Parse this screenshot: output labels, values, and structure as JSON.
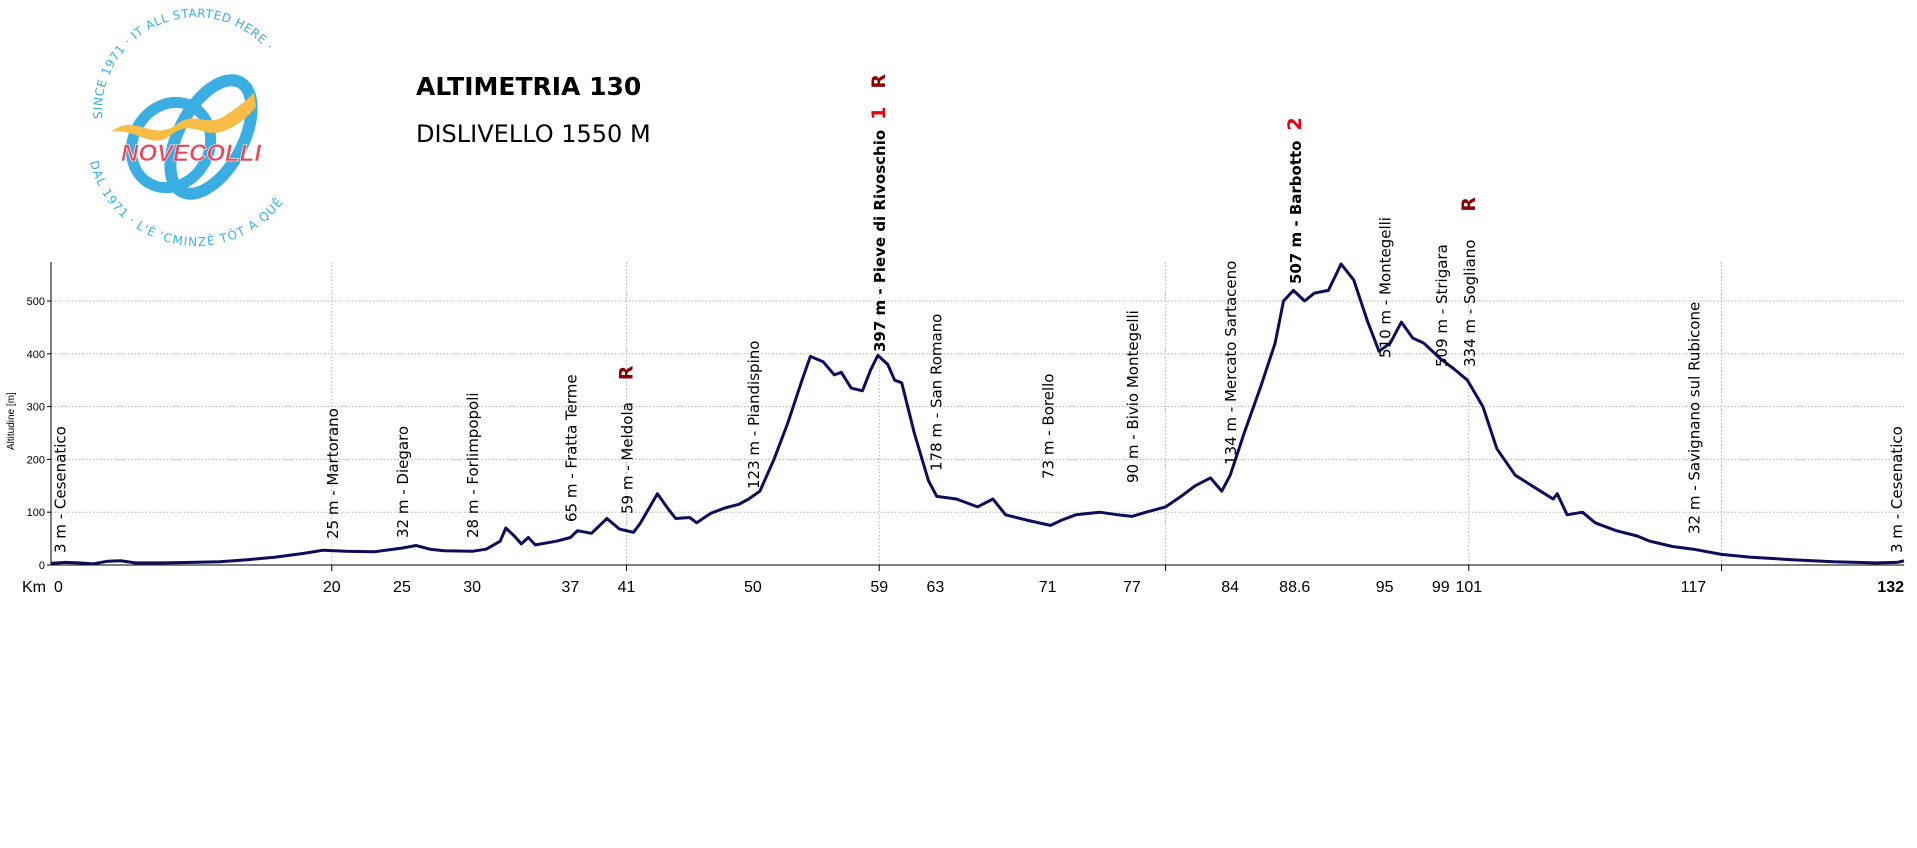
{
  "header": {
    "title": "ALTIMETRIA 130",
    "subtitle": "DISLIVELLO 1550 M"
  },
  "logo": {
    "name": "NOVECOLLI",
    "ring_text_top": "SINCE 1971 · IT ALL STARTED HERE ·",
    "ring_text_bottom": "DAL 1971 · L'È 'CMINZÊ TÖT A QUÊ"
  },
  "colors": {
    "profile": "#0d0d5c",
    "climb_number": "#e3000f",
    "refreshment": "#8b0000",
    "logo_blue": "#3aaee3",
    "logo_yellow": "#f7bd45",
    "logo_red": "#e8465a"
  },
  "chart_data": {
    "type": "line",
    "title": "ALTIMETRIA 130",
    "xlabel": "Km",
    "ylabel": "Altitudine [m]",
    "xlim": [
      0,
      132
    ],
    "ylim": [
      0,
      570
    ],
    "grid": true,
    "yticks": [
      "0",
      "100",
      "200",
      "300",
      "400",
      "500"
    ],
    "xticks": [
      {
        "km": 0,
        "label": "0"
      },
      {
        "km": 20,
        "label": "20"
      },
      {
        "km": 25,
        "label": "25"
      },
      {
        "km": 30,
        "label": "30"
      },
      {
        "km": 37,
        "label": "37"
      },
      {
        "km": 41,
        "label": "41"
      },
      {
        "km": 50,
        "label": "50"
      },
      {
        "km": 59,
        "label": "59"
      },
      {
        "km": 63,
        "label": "63"
      },
      {
        "km": 71,
        "label": "71"
      },
      {
        "km": 77,
        "label": "77"
      },
      {
        "km": 84,
        "label": "84"
      },
      {
        "km": 88.6,
        "label": "88.6"
      },
      {
        "km": 95,
        "label": "95"
      },
      {
        "km": 99,
        "label": "99"
      },
      {
        "km": 101,
        "label": "101"
      },
      {
        "km": 117,
        "label": "117"
      },
      {
        "km": 132,
        "label": "132"
      }
    ],
    "vertical_markers_km": [
      20,
      41,
      59,
      79.4,
      101,
      119
    ],
    "profile": [
      [
        0,
        3
      ],
      [
        1,
        5
      ],
      [
        2,
        4
      ],
      [
        3,
        2
      ],
      [
        4,
        7
      ],
      [
        5,
        8
      ],
      [
        6,
        4
      ],
      [
        8,
        4
      ],
      [
        10,
        5
      ],
      [
        12,
        6
      ],
      [
        14,
        10
      ],
      [
        16,
        15
      ],
      [
        18,
        22
      ],
      [
        19.4,
        28
      ],
      [
        21,
        26
      ],
      [
        23,
        25
      ],
      [
        25,
        32
      ],
      [
        26,
        37
      ],
      [
        27,
        30
      ],
      [
        28,
        27
      ],
      [
        30,
        26
      ],
      [
        31,
        30
      ],
      [
        32,
        45
      ],
      [
        32.4,
        70
      ],
      [
        33,
        55
      ],
      [
        33.5,
        40
      ],
      [
        34,
        52
      ],
      [
        34.5,
        38
      ],
      [
        36,
        45
      ],
      [
        37,
        52
      ],
      [
        37.5,
        65
      ],
      [
        38.5,
        60
      ],
      [
        39.6,
        88
      ],
      [
        40.5,
        68
      ],
      [
        41.5,
        62
      ],
      [
        42,
        80
      ],
      [
        43.2,
        135
      ],
      [
        44,
        105
      ],
      [
        44.5,
        88
      ],
      [
        45.5,
        90
      ],
      [
        46,
        80
      ],
      [
        47,
        98
      ],
      [
        48,
        108
      ],
      [
        49,
        115
      ],
      [
        49.7,
        125
      ],
      [
        50.5,
        140
      ],
      [
        51.5,
        200
      ],
      [
        52.5,
        270
      ],
      [
        53.5,
        350
      ],
      [
        54.1,
        395
      ],
      [
        55,
        385
      ],
      [
        55.8,
        360
      ],
      [
        56.3,
        365
      ],
      [
        57,
        335
      ],
      [
        57.8,
        330
      ],
      [
        58.4,
        370
      ],
      [
        58.9,
        397
      ],
      [
        59.6,
        380
      ],
      [
        60.1,
        350
      ],
      [
        60.6,
        345
      ],
      [
        61.5,
        250
      ],
      [
        62.5,
        160
      ],
      [
        63.1,
        130
      ],
      [
        64.5,
        125
      ],
      [
        66,
        110
      ],
      [
        67.1,
        125
      ],
      [
        68,
        95
      ],
      [
        69.5,
        85
      ],
      [
        71.2,
        75
      ],
      [
        72,
        85
      ],
      [
        73,
        95
      ],
      [
        74.7,
        100
      ],
      [
        76,
        95
      ],
      [
        77,
        92
      ],
      [
        78,
        100
      ],
      [
        79.4,
        110
      ],
      [
        80.5,
        130
      ],
      [
        81.5,
        150
      ],
      [
        82.6,
        165
      ],
      [
        83.4,
        140
      ],
      [
        84,
        170
      ],
      [
        85,
        250
      ],
      [
        86.2,
        340
      ],
      [
        87.2,
        420
      ],
      [
        87.8,
        500
      ],
      [
        88.5,
        520
      ],
      [
        89.3,
        500
      ],
      [
        90,
        515
      ],
      [
        91,
        520
      ],
      [
        91.9,
        570
      ],
      [
        92.8,
        540
      ],
      [
        93.8,
        460
      ],
      [
        94.6,
        405
      ],
      [
        95.4,
        420
      ],
      [
        96.2,
        460
      ],
      [
        97,
        430
      ],
      [
        97.8,
        420
      ],
      [
        99,
        390
      ],
      [
        100,
        370
      ],
      [
        100.9,
        350
      ],
      [
        102,
        300
      ],
      [
        103,
        220
      ],
      [
        104.3,
        170
      ],
      [
        105.5,
        150
      ],
      [
        107,
        125
      ],
      [
        107.3,
        135
      ],
      [
        108,
        95
      ],
      [
        109.1,
        100
      ],
      [
        110,
        80
      ],
      [
        111.5,
        65
      ],
      [
        113,
        55
      ],
      [
        113.9,
        45
      ],
      [
        115.5,
        35
      ],
      [
        117,
        30
      ],
      [
        119,
        20
      ],
      [
        121,
        15
      ],
      [
        124,
        10
      ],
      [
        127,
        6
      ],
      [
        130,
        4
      ],
      [
        131.5,
        5
      ],
      [
        132,
        8
      ]
    ],
    "waypoints": [
      {
        "km": 0.6,
        "label": "3 m - Cesenatico",
        "bold": false,
        "climb": "",
        "refreshment": ""
      },
      {
        "km": 20,
        "label": "25 m - Martorano",
        "bold": false,
        "climb": "",
        "refreshment": ""
      },
      {
        "km": 25,
        "label": "32 m - Diegaro",
        "bold": false,
        "climb": "",
        "refreshment": ""
      },
      {
        "km": 30,
        "label": "28 m - Forlimpopoli",
        "bold": false,
        "climb": "",
        "refreshment": ""
      },
      {
        "km": 37,
        "label": "65 m - Fratta Terme",
        "bold": false,
        "climb": "",
        "refreshment": ""
      },
      {
        "km": 41,
        "label": "59 m - Meldola",
        "bold": false,
        "climb": "",
        "refreshment": "R"
      },
      {
        "km": 50,
        "label": "123 m - Piandispino",
        "bold": false,
        "climb": "",
        "refreshment": ""
      },
      {
        "km": 59,
        "label": "397 m - Pieve di Rivoschio",
        "bold": true,
        "climb": "1",
        "refreshment": "R"
      },
      {
        "km": 63,
        "label": "178 m - San Romano",
        "bold": false,
        "climb": "",
        "refreshment": ""
      },
      {
        "km": 71,
        "label": "73 m - Borello",
        "bold": false,
        "climb": "",
        "refreshment": ""
      },
      {
        "km": 77,
        "label": "90 m - Bivio Montegelli",
        "bold": false,
        "climb": "",
        "refreshment": ""
      },
      {
        "km": 84,
        "label": "134 m - Mercato Sartaceno",
        "bold": false,
        "climb": "",
        "refreshment": ""
      },
      {
        "km": 88.6,
        "label": "507 m - Barbotto",
        "bold": true,
        "climb": "2",
        "refreshment": ""
      },
      {
        "km": 95,
        "label": "510 m - Montegelli",
        "bold": false,
        "climb": "",
        "refreshment": ""
      },
      {
        "km": 99,
        "label": "509 m - Strigara",
        "bold": false,
        "climb": "",
        "refreshment": ""
      },
      {
        "km": 101,
        "label": "334 m - Sogliano",
        "bold": false,
        "climb": "",
        "refreshment": "R"
      },
      {
        "km": 117,
        "label": "32 m - Savignano sul Rubicone",
        "bold": false,
        "climb": "",
        "refreshment": ""
      },
      {
        "km": 132,
        "label": "3 m - Cesenatico",
        "bold": false,
        "climb": "",
        "refreshment": ""
      }
    ]
  }
}
